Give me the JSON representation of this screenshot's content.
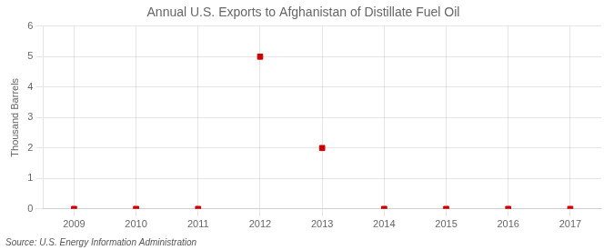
{
  "chart_data": {
    "type": "scatter",
    "title": "Annual U.S. Exports to Afghanistan of Distillate Fuel Oil",
    "ylabel": "Thousand Barrels",
    "source": "Source: U.S. Energy Information Administration",
    "x": [
      2009,
      2010,
      2011,
      2012,
      2013,
      2014,
      2015,
      2016,
      2017
    ],
    "values": [
      0,
      0,
      0,
      5,
      2,
      0,
      0,
      0,
      0
    ],
    "xlim": [
      2008.5,
      2017.5
    ],
    "xticks": [
      2009,
      2010,
      2011,
      2012,
      2013,
      2014,
      2015,
      2016,
      2017
    ],
    "ylim": [
      0,
      6
    ],
    "yticks": [
      0,
      1,
      2,
      3,
      4,
      5,
      6
    ],
    "color": "#cc0000",
    "marker": "square",
    "grid": true
  }
}
